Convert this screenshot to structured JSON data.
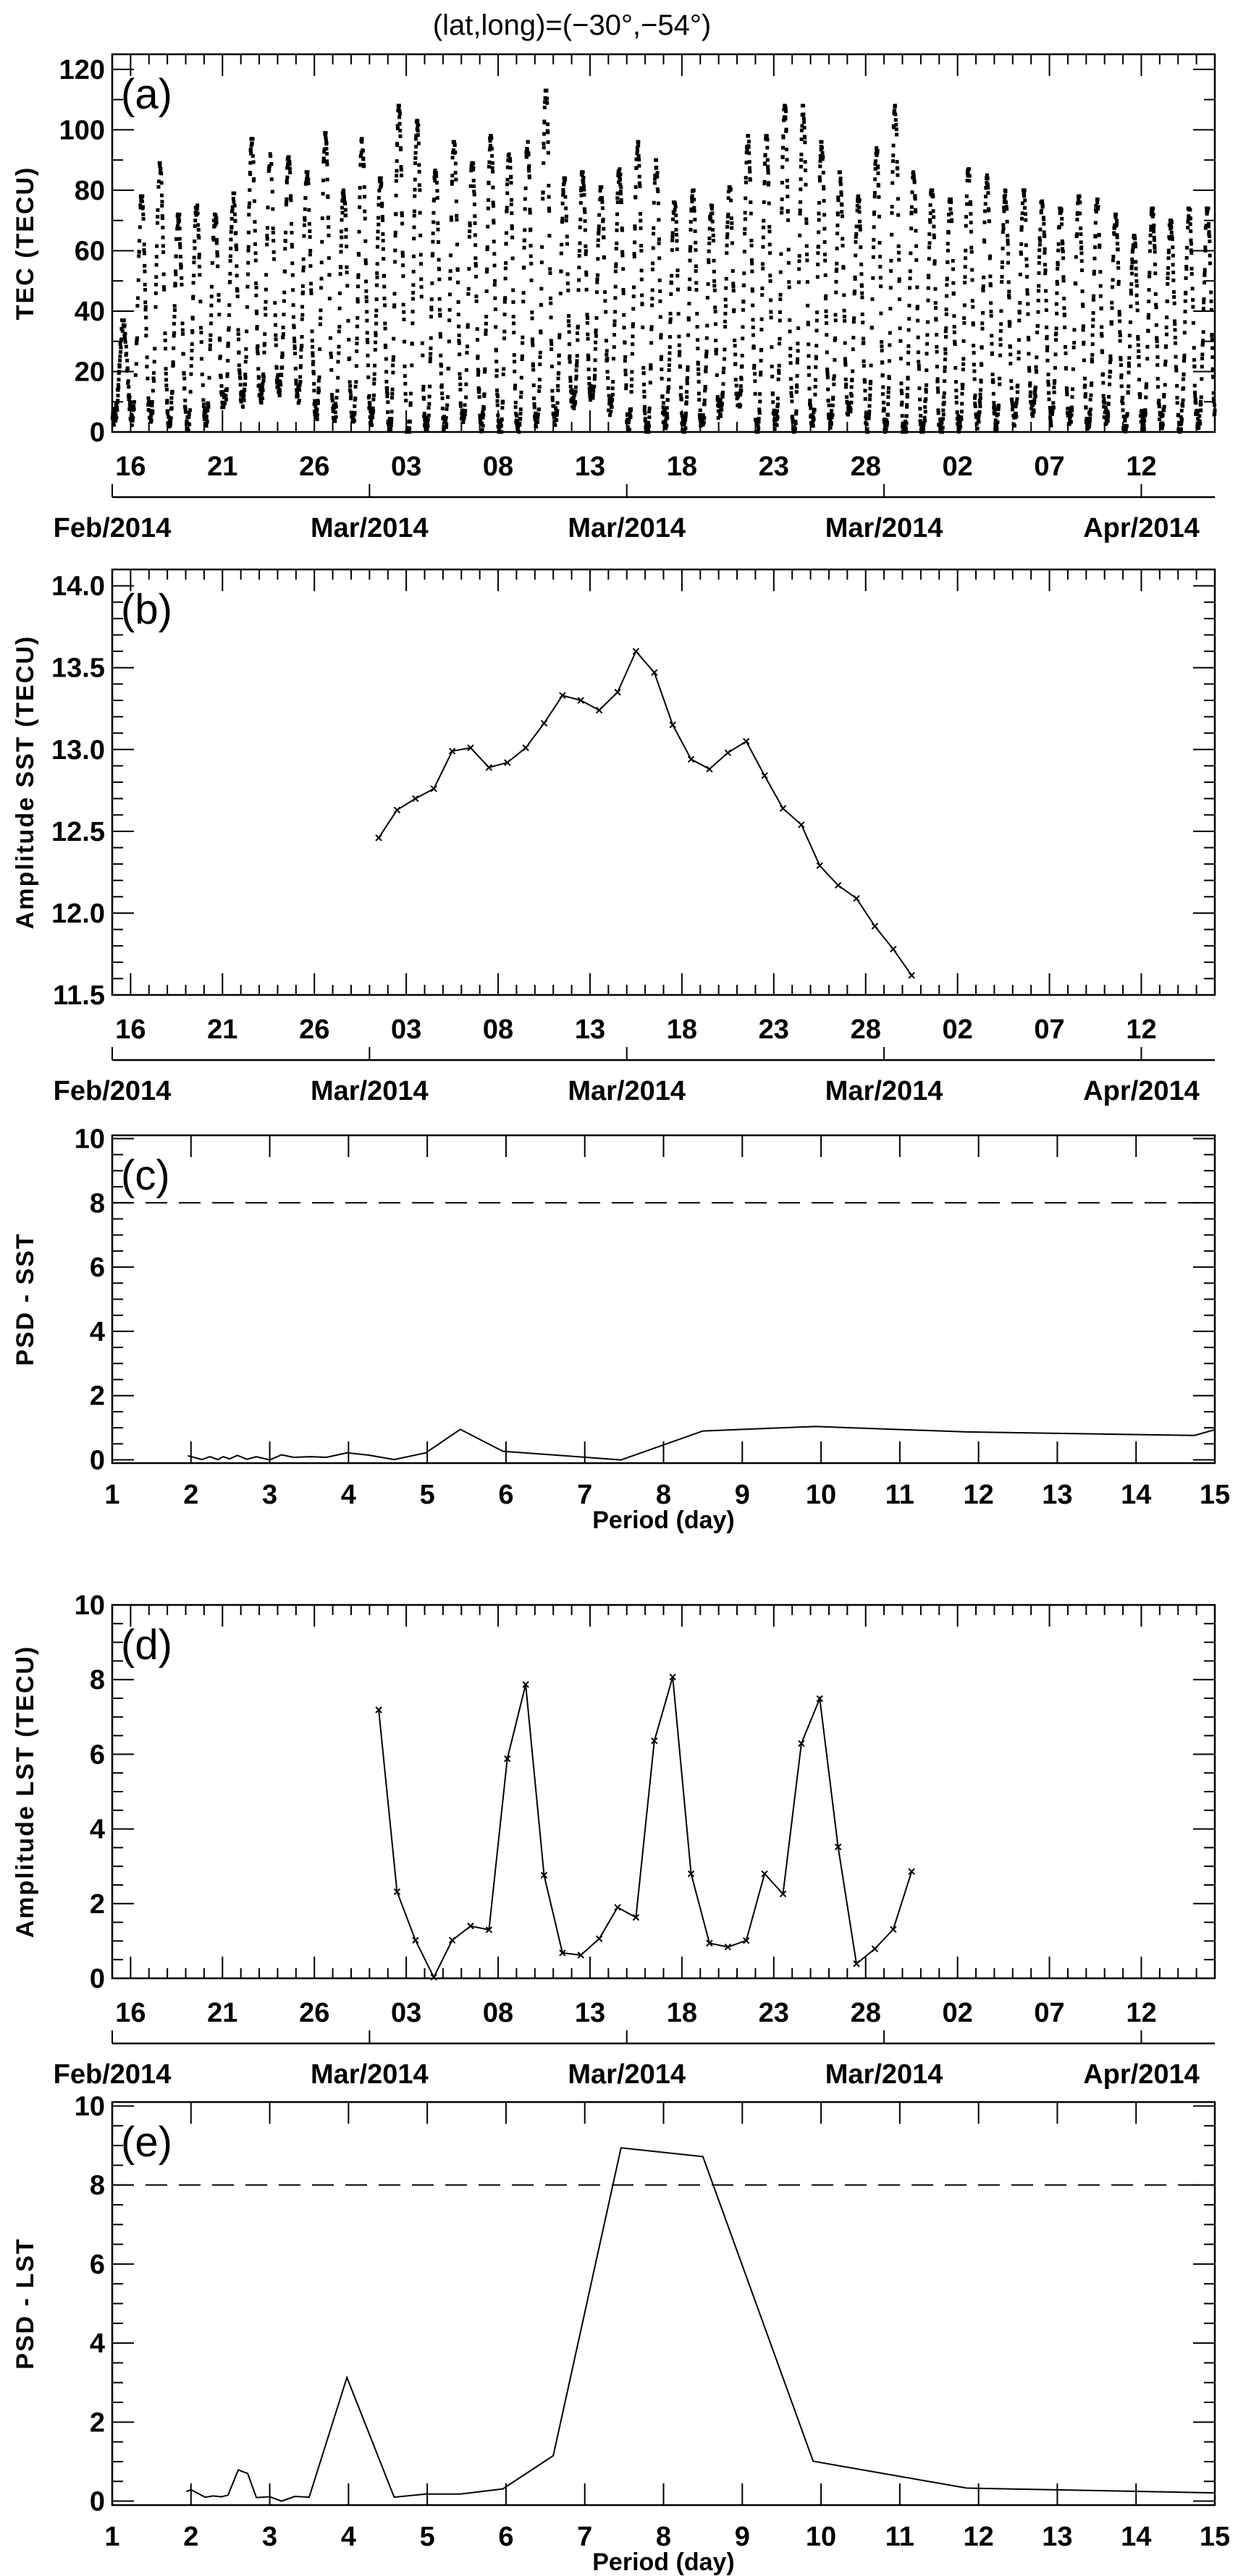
{
  "title": "(lat,long)=(−30°,−54°)",
  "time_axis": {
    "day_labels": [
      "16",
      "21",
      "26",
      "03",
      "08",
      "13",
      "18",
      "23",
      "28",
      "02",
      "07",
      "12"
    ],
    "day_label_positions": [
      0,
      5,
      10,
      15,
      20,
      25,
      30,
      35,
      40,
      45,
      50,
      55
    ],
    "month_labels": [
      "Feb/2014",
      "Mar/2014",
      "Mar/2014",
      "Mar/2014",
      "Apr/2014"
    ],
    "month_label_positions": [
      -1,
      13,
      27,
      41,
      55
    ],
    "units": "days since 16 Feb 2014",
    "xlim": [
      -1,
      59
    ]
  },
  "period_axis": {
    "tick_labels": [
      "1",
      "2",
      "3",
      "4",
      "5",
      "6",
      "7",
      "8",
      "9",
      "10",
      "11",
      "12",
      "13",
      "14",
      "15"
    ],
    "xlabel": "Period (day)",
    "xlim": [
      1,
      15
    ]
  },
  "chart_data": [
    {
      "id": "a",
      "letter": "(a)",
      "type": "scatter",
      "ylabel": "TEC (TECU)",
      "ylim": [
        0,
        125
      ],
      "yticks": [
        0,
        20,
        40,
        60,
        80,
        100,
        120
      ],
      "ytick_labels": [
        "0",
        "20",
        "40",
        "60",
        "80",
        "100",
        "120"
      ],
      "note": "dense hourly TEC samples summarised as daily max/min from day -1 (15 Feb) to day 59",
      "daily_start_day": -1,
      "daily_max": [
        37,
        78,
        89,
        72,
        75,
        72,
        79,
        97,
        92,
        91,
        86,
        99,
        80,
        97,
        84,
        108,
        103,
        87,
        96,
        89,
        98,
        94,
        96,
        113,
        84,
        86,
        81,
        87,
        96,
        90,
        76,
        80,
        75,
        81,
        98,
        98,
        108,
        108,
        96,
        86,
        78,
        94,
        108,
        86,
        80,
        77,
        87,
        85,
        80,
        80,
        77,
        74,
        78,
        77,
        72,
        65,
        74,
        70,
        74,
        74,
        60
      ],
      "daily_min": [
        5,
        5,
        6,
        4,
        3,
        5,
        10,
        10,
        12,
        15,
        12,
        6,
        6,
        5,
        5,
        3,
        0,
        2,
        2,
        5,
        3,
        0,
        1,
        4,
        5,
        10,
        12,
        8,
        3,
        0,
        4,
        1,
        3,
        8,
        10,
        1,
        3,
        2,
        3,
        4,
        8,
        2,
        2,
        0,
        0,
        1,
        2,
        4,
        3,
        5,
        8,
        5,
        4,
        3,
        5,
        2,
        3,
        4,
        2,
        3,
        4
      ]
    },
    {
      "id": "b",
      "letter": "(b)",
      "type": "line",
      "ylabel": "Amplitude SST (TECU)",
      "ylim": [
        11.5,
        14.1
      ],
      "yticks": [
        11.5,
        12.0,
        12.5,
        13.0,
        13.5,
        14.0
      ],
      "ytick_labels": [
        "11.5",
        "12.0",
        "12.5",
        "13.0",
        "13.5",
        "14.0"
      ],
      "x_start": 13.5,
      "x_step": 1,
      "values": [
        12.46,
        12.63,
        12.7,
        12.76,
        12.99,
        13.01,
        12.89,
        12.92,
        13.01,
        13.16,
        13.33,
        13.3,
        13.24,
        13.35,
        13.6,
        13.47,
        13.15,
        12.94,
        12.88,
        12.98,
        13.05,
        12.84,
        12.64,
        12.54,
        12.29,
        12.17,
        12.09,
        11.92,
        11.78,
        11.62
      ]
    },
    {
      "id": "c",
      "letter": "(c)",
      "type": "line",
      "ylabel": "PSD - SST",
      "ylim": [
        -0.1,
        10.1
      ],
      "yticks": [
        0,
        2,
        4,
        6,
        8,
        10
      ],
      "ytick_labels": [
        "0",
        "2",
        "4",
        "6",
        "8",
        "10"
      ],
      "threshold": 8,
      "x": [
        1.96,
        2.14,
        2.24,
        2.34,
        2.41,
        2.49,
        2.59,
        2.71,
        2.83,
        3.0,
        3.15,
        3.3,
        3.52,
        3.72,
        3.98,
        4.25,
        4.58,
        4.98,
        5.42,
        5.96,
        7.46,
        8.5,
        9.93,
        11.85,
        14.74,
        15.0
      ],
      "y": [
        0.13,
        0.01,
        0.1,
        0.01,
        0.1,
        0.03,
        0.14,
        0.02,
        0.1,
        0.0,
        0.16,
        0.08,
        0.1,
        0.08,
        0.22,
        0.15,
        0.01,
        0.22,
        0.95,
        0.27,
        0.0,
        0.9,
        1.04,
        0.87,
        0.76,
        0.94
      ]
    },
    {
      "id": "d",
      "letter": "(d)",
      "type": "line",
      "ylabel": "Amplitude LST (TECU)",
      "ylim": [
        0,
        10
      ],
      "yticks": [
        0,
        2,
        4,
        6,
        8,
        10
      ],
      "ytick_labels": [
        "0",
        "2",
        "4",
        "6",
        "8",
        "10"
      ],
      "x_start": 13.5,
      "x_step": 1,
      "values": [
        7.19,
        2.32,
        1.02,
        0.03,
        1.02,
        1.4,
        1.3,
        5.88,
        7.87,
        2.76,
        0.68,
        0.62,
        1.06,
        1.9,
        1.63,
        6.36,
        8.07,
        2.8,
        0.94,
        0.84,
        1.01,
        2.8,
        2.26,
        6.29,
        7.49,
        3.52,
        0.39,
        0.79,
        1.31,
        2.86
      ]
    },
    {
      "id": "e",
      "letter": "(e)",
      "type": "line",
      "ylabel": "PSD  -  LST",
      "ylim": [
        -0.1,
        10.1
      ],
      "yticks": [
        0,
        2,
        4,
        6,
        8,
        10
      ],
      "ytick_labels": [
        "0",
        "2",
        "4",
        "6",
        "8",
        "10"
      ],
      "threshold": 8,
      "x": [
        1.94,
        2.0,
        2.18,
        2.28,
        2.39,
        2.47,
        2.6,
        2.72,
        2.83,
        3.0,
        3.15,
        3.32,
        3.5,
        3.98,
        4.58,
        4.98,
        5.42,
        5.96,
        6.6,
        7.46,
        8.5,
        9.9,
        11.85,
        15.0
      ],
      "y": [
        0.24,
        0.29,
        0.1,
        0.13,
        0.11,
        0.15,
        0.79,
        0.7,
        0.09,
        0.11,
        0.0,
        0.12,
        0.1,
        3.13,
        0.1,
        0.18,
        0.18,
        0.31,
        1.15,
        8.94,
        8.72,
        1.01,
        0.33,
        0.21
      ]
    }
  ]
}
